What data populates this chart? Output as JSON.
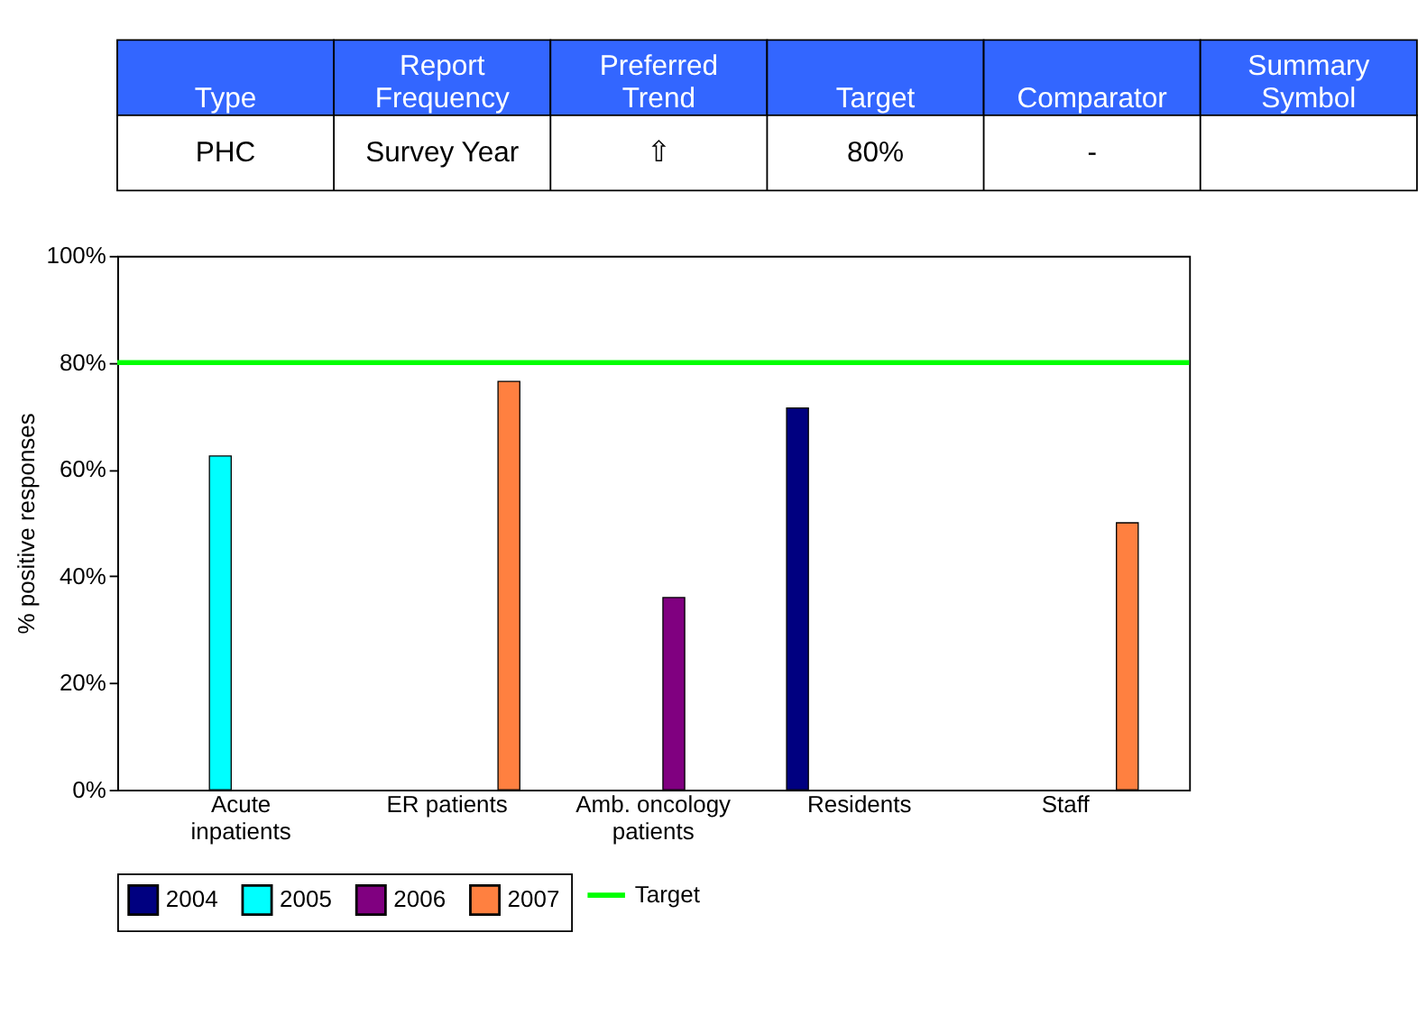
{
  "chart_data": [
    {
      "type": "other",
      "annotations": [
        "Type",
        "Report Frequency",
        "Preferred Trend",
        "Target",
        "Comparator",
        "Summary Symbol",
        "PHC",
        "Survey Year",
        "⇧",
        "80%",
        "-"
      ]
    },
    {
      "type": "bar",
      "ylabel": "% positive responses",
      "categories": [
        "Acute inpatients",
        "ER patients",
        "Amb. oncology patients",
        "Residents",
        "Staff"
      ],
      "series": [
        {
          "name": "2004",
          "color": "#000080",
          "values": [
            null,
            null,
            null,
            71.5,
            null
          ]
        },
        {
          "name": "2005",
          "color": "#00ffff",
          "values": [
            62.5,
            null,
            null,
            null,
            null
          ]
        },
        {
          "name": "2006",
          "color": "#800080",
          "values": [
            null,
            null,
            36,
            null,
            null
          ]
        },
        {
          "name": "2007",
          "color": "#ff8040",
          "values": [
            null,
            76.5,
            null,
            null,
            50
          ]
        }
      ],
      "ylim": [
        0,
        100
      ],
      "yticks": [
        {
          "value": 0,
          "label": "0%"
        },
        {
          "value": 20,
          "label": "20%"
        },
        {
          "value": 40,
          "label": "40%"
        },
        {
          "value": 60,
          "label": "60%"
        },
        {
          "value": 80,
          "label": "80%"
        },
        {
          "value": 100,
          "label": "100%"
        }
      ],
      "ref_lines": [
        {
          "axis": "y",
          "value": 80,
          "label": "Target",
          "color": "#00ff00"
        }
      ],
      "grid": false,
      "legend": "bottom"
    }
  ]
}
